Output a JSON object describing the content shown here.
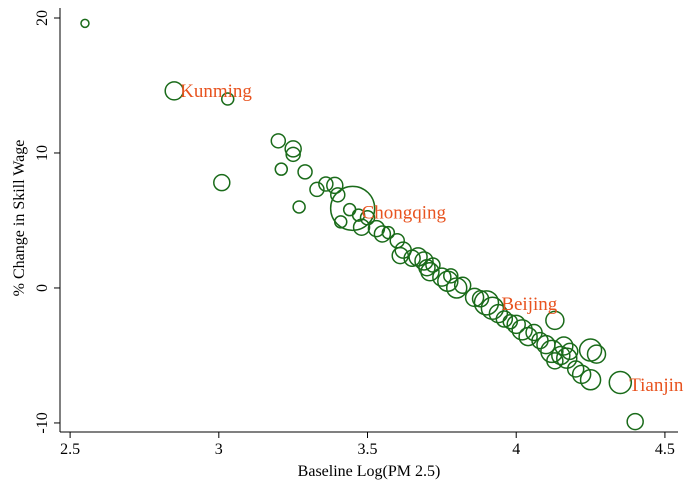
{
  "chart_data": {
    "type": "scatter",
    "xlabel": "Baseline Log(PM 2.5)",
    "ylabel": "% Change in Skill Wage",
    "xlim": [
      2.466,
      4.544
    ],
    "ylim": [
      -10.67,
      20.74
    ],
    "xticks": [
      2.5,
      3,
      3.5,
      4,
      4.5
    ],
    "yticks": [
      -10,
      0,
      10,
      20
    ],
    "color": "#1a6b1a",
    "annotation_color": "#e8531f",
    "x": [
      2.55,
      2.85,
      3.03,
      3.01,
      3.2,
      3.25,
      3.25,
      3.29,
      3.21,
      3.27,
      3.33,
      3.36,
      3.39,
      3.4,
      3.45,
      3.41,
      3.44,
      3.47,
      3.48,
      3.5,
      3.53,
      3.55,
      3.57,
      3.6,
      3.61,
      3.62,
      3.65,
      3.67,
      3.69,
      3.7,
      3.71,
      3.72,
      3.75,
      3.77,
      3.78,
      3.8,
      3.82,
      3.86,
      3.88,
      3.9,
      3.92,
      3.94,
      3.96,
      3.98,
      4.0,
      4.02,
      4.04,
      4.06,
      4.08,
      4.1,
      4.12,
      4.13,
      4.13,
      4.15,
      4.16,
      4.17,
      4.18,
      4.2,
      4.22,
      4.25,
      4.25,
      4.27,
      4.35,
      4.4
    ],
    "y": [
      19.6,
      14.6,
      14.0,
      7.8,
      10.9,
      10.3,
      9.9,
      8.6,
      8.8,
      6.0,
      7.3,
      7.7,
      7.6,
      6.9,
      5.9,
      4.9,
      5.8,
      5.4,
      4.5,
      5.2,
      4.4,
      4.0,
      4.1,
      3.5,
      2.4,
      2.8,
      2.2,
      2.3,
      2.0,
      1.5,
      1.2,
      1.7,
      0.8,
      0.5,
      0.9,
      0.0,
      0.2,
      -0.7,
      -0.8,
      -1.1,
      -1.5,
      -1.9,
      -2.3,
      -2.5,
      -2.7,
      -3.1,
      -3.6,
      -3.3,
      -3.9,
      -4.2,
      -4.7,
      -2.4,
      -5.4,
      -5.0,
      -4.3,
      -5.2,
      -4.7,
      -6.0,
      -6.4,
      -6.8,
      -4.6,
      -4.9,
      -7.0,
      -9.9
    ],
    "sizes": [
      4,
      9,
      6,
      8,
      7,
      8,
      7,
      7,
      6,
      6,
      7,
      7,
      8,
      7,
      22,
      6,
      6,
      6,
      8,
      7,
      8,
      8,
      6,
      7,
      8,
      8,
      8,
      9,
      9,
      8,
      9,
      7,
      9,
      10,
      7,
      10,
      8,
      9,
      8,
      12,
      11,
      9,
      8,
      7,
      9,
      10,
      9,
      8,
      8,
      9,
      11,
      9,
      8,
      9,
      9,
      10,
      8,
      8,
      9,
      10,
      11,
      9,
      11,
      8
    ],
    "annotations": [
      {
        "text": "Kunming",
        "x": 2.87,
        "y": 14.6
      },
      {
        "text": "Chongqing",
        "x": 3.48,
        "y": 5.6
      },
      {
        "text": "Beijing",
        "x": 3.95,
        "y": -1.2
      },
      {
        "text": "Tianjin",
        "x": 4.38,
        "y": -7.2
      }
    ]
  }
}
